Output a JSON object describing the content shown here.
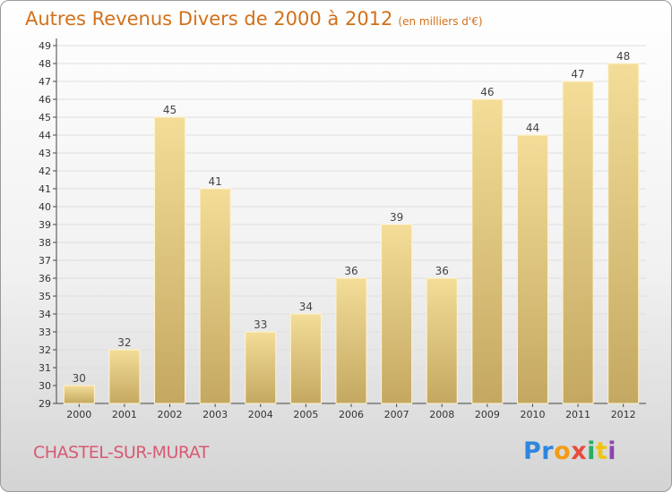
{
  "header": {
    "title": "Autres Revenus Divers de 2000 à 2012",
    "subtitle": "(en milliers d'€)"
  },
  "footer": {
    "commune": "CHASTEL-SUR-MURAT",
    "logo_letters": [
      "P",
      "r",
      "o",
      "x",
      "i",
      "t",
      "i"
    ]
  },
  "colors": {
    "title": "#d2701a",
    "commune": "#d85a72",
    "bar_light": "#f3dd98",
    "bar_dark": "#c4a861",
    "grid": "#dedede",
    "logo": [
      "#2e86de",
      "#2e86de",
      "#f39c12",
      "#e74c3c",
      "#27ae60",
      "#f1c40f",
      "#8e44ad"
    ]
  },
  "chart_data": {
    "type": "bar",
    "title": "Autres Revenus Divers de 2000 à 2012",
    "subtitle": "(en milliers d'€)",
    "categories": [
      "2000",
      "2001",
      "2002",
      "2003",
      "2004",
      "2005",
      "2006",
      "2007",
      "2008",
      "2009",
      "2010",
      "2011",
      "2012"
    ],
    "values": [
      30,
      32,
      45,
      41,
      33,
      34,
      36,
      39,
      36,
      46,
      44,
      47,
      48
    ],
    "xlabel": "",
    "ylabel": "",
    "ylim": [
      29,
      49
    ],
    "yticks": [
      29,
      30,
      31,
      32,
      33,
      34,
      35,
      36,
      37,
      38,
      39,
      40,
      41,
      42,
      43,
      44,
      45,
      46,
      47,
      48,
      49
    ],
    "grid": true,
    "data_labels": true
  }
}
